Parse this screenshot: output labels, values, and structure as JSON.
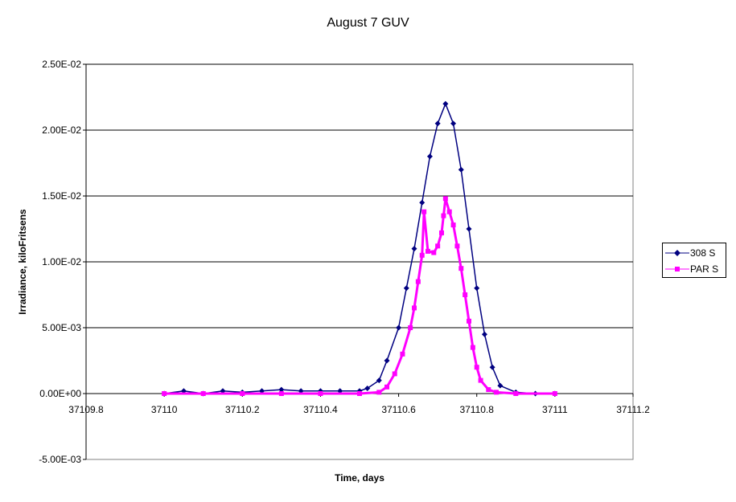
{
  "chart_data": {
    "type": "scatter",
    "title": "August 7 GUV",
    "xlabel": "Time, days",
    "ylabel": "Irradiance, kiloFritsens",
    "xlim": [
      37109.8,
      37111.2
    ],
    "ylim": [
      -0.005,
      0.025
    ],
    "x_ticks": [
      37109.8,
      37110,
      37110.2,
      37110.4,
      37110.6,
      37110.8,
      37111,
      37111.2
    ],
    "x_tick_labels": [
      "37109.8",
      "37110",
      "37110.2",
      "37110.4",
      "37110.6",
      "37110.8",
      "37111",
      "37111.2"
    ],
    "y_ticks": [
      -0.005,
      0,
      0.005,
      0.01,
      0.015,
      0.02,
      0.025
    ],
    "y_tick_labels": [
      "-5.00E-03",
      "0.00E+00",
      "5.00E-03",
      "1.00E-02",
      "1.50E-02",
      "2.00E-02",
      "2.50E-02"
    ],
    "grid": "horizontal major gridlines",
    "legend_position": "right",
    "series": [
      {
        "name": "308 S",
        "color": "#000080",
        "marker": "diamond",
        "points": [
          [
            37110.0,
            0.0
          ],
          [
            37110.05,
            0.0002
          ],
          [
            37110.1,
            0.0
          ],
          [
            37110.15,
            0.0002
          ],
          [
            37110.2,
            0.0001
          ],
          [
            37110.25,
            0.0002
          ],
          [
            37110.3,
            0.0003
          ],
          [
            37110.35,
            0.0002
          ],
          [
            37110.4,
            0.0002
          ],
          [
            37110.45,
            0.0002
          ],
          [
            37110.5,
            0.0002
          ],
          [
            37110.52,
            0.0004
          ],
          [
            37110.55,
            0.001
          ],
          [
            37110.57,
            0.0025
          ],
          [
            37110.6,
            0.005
          ],
          [
            37110.62,
            0.008
          ],
          [
            37110.64,
            0.011
          ],
          [
            37110.66,
            0.0145
          ],
          [
            37110.68,
            0.018
          ],
          [
            37110.7,
            0.0205
          ],
          [
            37110.72,
            0.022
          ],
          [
            37110.74,
            0.0205
          ],
          [
            37110.76,
            0.017
          ],
          [
            37110.78,
            0.0125
          ],
          [
            37110.8,
            0.008
          ],
          [
            37110.82,
            0.0045
          ],
          [
            37110.84,
            0.002
          ],
          [
            37110.86,
            0.0006
          ],
          [
            37110.9,
            0.0001
          ],
          [
            37110.95,
            0.0
          ],
          [
            37111.0,
            0.0
          ]
        ]
      },
      {
        "name": "PAR S",
        "color": "#FF00FF",
        "marker": "square",
        "points": [
          [
            37110.0,
            0.0
          ],
          [
            37110.1,
            0.0
          ],
          [
            37110.2,
            0.0
          ],
          [
            37110.3,
            0.0
          ],
          [
            37110.4,
            0.0
          ],
          [
            37110.5,
            0.0
          ],
          [
            37110.55,
            0.0001
          ],
          [
            37110.57,
            0.0005
          ],
          [
            37110.59,
            0.0015
          ],
          [
            37110.61,
            0.003
          ],
          [
            37110.63,
            0.005
          ],
          [
            37110.64,
            0.0065
          ],
          [
            37110.65,
            0.0085
          ],
          [
            37110.66,
            0.0105
          ],
          [
            37110.665,
            0.0138
          ],
          [
            37110.675,
            0.0108
          ],
          [
            37110.69,
            0.0107
          ],
          [
            37110.7,
            0.0112
          ],
          [
            37110.71,
            0.0122
          ],
          [
            37110.715,
            0.0135
          ],
          [
            37110.72,
            0.0148
          ],
          [
            37110.73,
            0.0138
          ],
          [
            37110.74,
            0.0128
          ],
          [
            37110.75,
            0.0112
          ],
          [
            37110.76,
            0.0095
          ],
          [
            37110.77,
            0.0075
          ],
          [
            37110.78,
            0.0055
          ],
          [
            37110.79,
            0.0035
          ],
          [
            37110.8,
            0.002
          ],
          [
            37110.81,
            0.001
          ],
          [
            37110.83,
            0.0003
          ],
          [
            37110.85,
            0.0001
          ],
          [
            37110.9,
            0.0
          ],
          [
            37111.0,
            0.0
          ]
        ]
      }
    ]
  }
}
